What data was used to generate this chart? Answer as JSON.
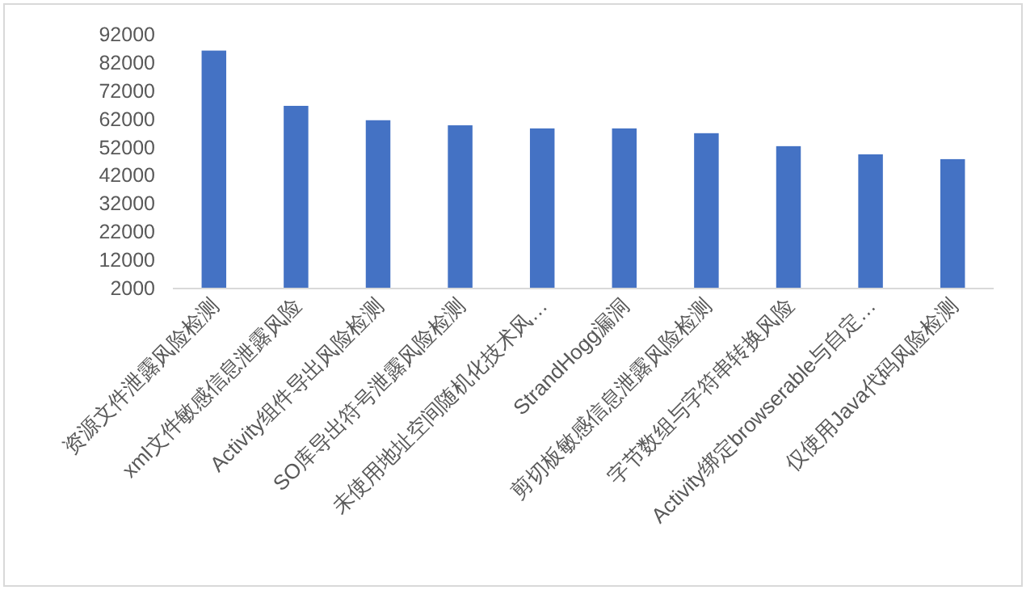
{
  "chart_data": {
    "type": "bar",
    "categories": [
      "资源文件泄露风险检测",
      "xml文件敏感信息泄露风险",
      "Activity组件导出风险检测",
      "SO库导出符号泄露风险检测",
      "未使用地址空间随机化技术风…",
      "StrandHogg漏洞",
      "剪切板敏感信息泄露风险检测",
      "字节数组与字符串转换风险",
      "Activity绑定browserable与自定…",
      "仅使用Java代码风险检测"
    ],
    "values": [
      86100,
      66500,
      61400,
      59600,
      58500,
      58500,
      56800,
      52200,
      49300,
      47600
    ],
    "color": "#4472c4",
    "ylim": [
      2000,
      92000
    ],
    "yticks": [
      2000,
      12000,
      22000,
      32000,
      42000,
      52000,
      62000,
      72000,
      82000,
      92000
    ],
    "grid": false
  }
}
